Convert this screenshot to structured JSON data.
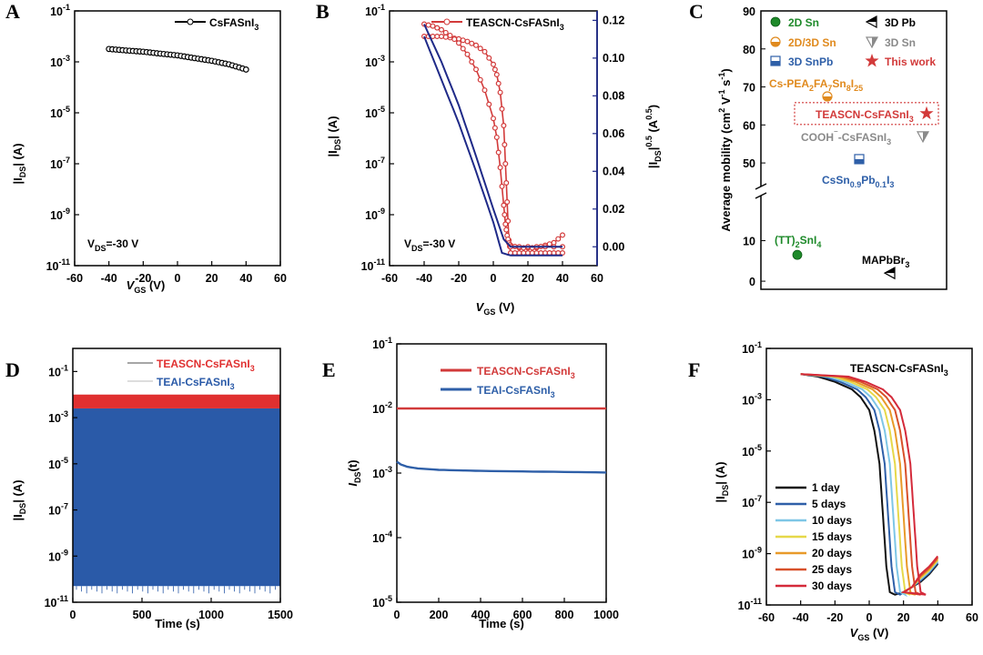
{
  "panel_labels": [
    "A",
    "B",
    "C",
    "D",
    "E",
    "F"
  ],
  "chart_data": [
    {
      "panel": "A",
      "type": "line",
      "title": "",
      "xlabel": "V_GS (V)",
      "ylabel": "|I_DS| (A)",
      "xlim": [
        -60,
        60
      ],
      "ylim_log10": [
        -11,
        -1
      ],
      "yscale": "log",
      "xticks": [
        -60,
        -40,
        -20,
        0,
        20,
        40,
        60
      ],
      "yticks": [
        -11,
        -9,
        -7,
        -5,
        -3,
        -1
      ],
      "legend": "top-right",
      "annotation": "V_DS=-30 V",
      "series": [
        {
          "name": "CsFASnI3",
          "color": "#000000",
          "marker": "circle-open",
          "x": [
            -40,
            -30,
            -20,
            -10,
            0,
            10,
            20,
            30,
            40
          ],
          "y": [
            0.0032,
            0.0028,
            0.0025,
            0.0021,
            0.0018,
            0.0014,
            0.0011,
            0.0008,
            0.0005
          ]
        }
      ]
    },
    {
      "panel": "B",
      "type": "line",
      "title": "",
      "xlabel": "V_GS (V)",
      "ylabel": "|I_DS| (A)",
      "y2label": "|I_DS|^0.5 (A^0.5)",
      "xlim": [
        -60,
        60
      ],
      "ylim_log10": [
        -11,
        -1
      ],
      "y2lim": [
        -0.01,
        0.125
      ],
      "yscale": "log",
      "xticks": [
        -60,
        -40,
        -20,
        0,
        20,
        40,
        60
      ],
      "yticks": [
        -11,
        -9,
        -7,
        -5,
        -3,
        -1
      ],
      "y2ticks": [
        0.0,
        0.02,
        0.04,
        0.06,
        0.08,
        0.1,
        0.12
      ],
      "legend": "top-right",
      "annotation": "V_DS=-30 V",
      "series": [
        {
          "name": "TEASCN-CsFASnI3",
          "color": "#d23a3a",
          "marker": "circle-open",
          "axis": "left",
          "x": [
            -40,
            -35,
            -30,
            -25,
            -20,
            -15,
            -10,
            -5,
            0,
            2,
            4,
            6,
            7,
            8,
            9,
            10,
            15,
            20,
            25,
            30,
            35,
            40
          ],
          "y_log10": [
            -2.0,
            -2.0,
            -2.0,
            -2.05,
            -2.1,
            -2.2,
            -2.35,
            -2.6,
            -3.1,
            -3.5,
            -4.2,
            -5.5,
            -7.0,
            -8.5,
            -10.0,
            -10.5,
            -10.5,
            -10.5,
            -10.5,
            -10.5,
            -10.5,
            -10.5
          ]
        },
        {
          "name": "",
          "color": "#d23a3a",
          "marker": "circle-open",
          "axis": "left",
          "x": [
            10,
            15,
            20,
            25,
            30,
            35,
            40
          ],
          "y_log10": [
            -10.2,
            -10.3,
            -10.3,
            -10.3,
            -10.2,
            -10.1,
            -9.8
          ]
        },
        {
          "name": "",
          "color": "#d23a3a",
          "marker": "circle-open",
          "axis": "right",
          "x": [
            -40,
            -35,
            -30,
            -25,
            -20,
            -15,
            -10,
            -5,
            0,
            2,
            4,
            6,
            7,
            8,
            9,
            10,
            20,
            30,
            40
          ],
          "y": [
            0.118,
            0.117,
            0.115,
            0.112,
            0.108,
            0.102,
            0.094,
            0.083,
            0.068,
            0.058,
            0.042,
            0.022,
            0.012,
            0.006,
            0.002,
            0.0,
            0.0,
            0.0,
            0.0
          ]
        },
        {
          "name": "",
          "color": "#1f2a88",
          "marker": "none",
          "axis": "left",
          "x": [
            -40,
            -30,
            -20,
            -10,
            0,
            5,
            10,
            20,
            30,
            40
          ],
          "y_log10": [
            -2.0,
            -3.7,
            -5.4,
            -7.3,
            -9.3,
            -10.5,
            -10.6,
            -10.6,
            -10.6,
            -10.6
          ]
        },
        {
          "name": "",
          "color": "#1f2a88",
          "marker": "none",
          "axis": "right",
          "x": [
            -40,
            -30,
            -20,
            -10,
            -5,
            0,
            3,
            6,
            10,
            20,
            30,
            40
          ],
          "y": [
            0.118,
            0.098,
            0.075,
            0.048,
            0.034,
            0.02,
            0.012,
            0.004,
            0.0,
            0.0,
            0.0,
            0.0
          ]
        }
      ]
    },
    {
      "panel": "C",
      "type": "scatter",
      "title": "",
      "xlabel": "",
      "ylabel": "Average mobility (cm² V⁻¹ s⁻¹)",
      "yticks_upper": [
        50,
        60,
        70,
        80,
        90
      ],
      "yticks_lower": [
        0,
        10
      ],
      "ylim_upper": [
        45,
        90
      ],
      "ylim_lower": [
        -2,
        20
      ],
      "axis_break": true,
      "legend": "top-left",
      "legend_entries": [
        {
          "label": "2D Sn",
          "color": "#1e8a2a",
          "marker": "sphere"
        },
        {
          "label": "3D Pb",
          "color": "#000000",
          "marker": "triangle-left"
        },
        {
          "label": "2D/3D Sn",
          "color": "#e08a1e",
          "marker": "half-circle"
        },
        {
          "label": "3D Sn",
          "color": "#8a8a8a",
          "marker": "triangle-down"
        },
        {
          "label": "3D SnPb",
          "color": "#2e5fa8",
          "marker": "half-square"
        },
        {
          "label": "This work",
          "color": "#d23a3a",
          "marker": "star"
        }
      ],
      "points": [
        {
          "label": "Cs-PEA2FA7Sn8I25",
          "y": 67.5,
          "color": "#e08a1e",
          "marker": "half-circle"
        },
        {
          "label": "TEASCN-CsFASnI3",
          "y": 63.0,
          "color": "#d23a3a",
          "marker": "star"
        },
        {
          "label": "COOH⁻-CsFASnI3",
          "y": 57.0,
          "color": "#8a8a8a",
          "marker": "triangle-down"
        },
        {
          "label": "CsSn0.9Pb0.1I3",
          "y": 51.0,
          "color": "#2e5fa8",
          "marker": "half-square"
        },
        {
          "label": "(TT)2SnI4",
          "y": 6.5,
          "color": "#1e8a2a",
          "marker": "sphere"
        },
        {
          "label": "MAPbBr3",
          "y": 2.0,
          "color": "#000000",
          "marker": "triangle-left"
        }
      ]
    },
    {
      "panel": "D",
      "type": "area",
      "title": "",
      "xlabel": "Time (s)",
      "ylabel": "|I_DS| (A)",
      "xlim": [
        0,
        1500
      ],
      "ylim_log10": [
        -11,
        0
      ],
      "yscale": "log",
      "xticks": [
        0,
        500,
        1000,
        1500
      ],
      "yticks": [
        -11,
        -9,
        -7,
        -5,
        -3,
        -1
      ],
      "legend": "top-right",
      "series": [
        {
          "name": "TEASCN-CsFASnI3",
          "color": "#e03030",
          "on_log10": -2.0,
          "off_log10": -2.6
        },
        {
          "name": "TEAI-CsFASnI3",
          "color": "#2a5aa8",
          "on_log10": -2.6,
          "off_log10": -10.3
        }
      ]
    },
    {
      "panel": "E",
      "type": "line",
      "title": "",
      "xlabel": "Time (s)",
      "ylabel": "I_DS(t)",
      "xlim": [
        0,
        1000
      ],
      "ylim_log10": [
        -5,
        -1
      ],
      "yscale": "log",
      "xticks": [
        0,
        200,
        400,
        600,
        800,
        1000
      ],
      "yticks": [
        -5,
        -4,
        -3,
        -2,
        -1
      ],
      "legend": "top-right",
      "series": [
        {
          "name": "TEASCN-CsFASnI3",
          "color": "#d23a3a",
          "x": [
            0,
            200,
            400,
            600,
            800,
            1000
          ],
          "y": [
            0.01,
            0.01,
            0.01,
            0.01,
            0.01,
            0.01
          ]
        },
        {
          "name": "TEAI-CsFASnI3",
          "color": "#2e5fa8",
          "x": [
            0,
            20,
            50,
            100,
            200,
            300,
            400,
            600,
            800,
            1000
          ],
          "y": [
            0.0015,
            0.00135,
            0.00125,
            0.00118,
            0.00112,
            0.0011,
            0.00108,
            0.00106,
            0.00104,
            0.00102
          ]
        }
      ]
    },
    {
      "panel": "F",
      "type": "line",
      "title": "TEASCN-CsFASnI3",
      "xlabel": "V_GS (V)",
      "ylabel": "|I_DS| (A)",
      "xlim": [
        -60,
        60
      ],
      "ylim_log10": [
        -11,
        -1
      ],
      "yscale": "log",
      "xticks": [
        -60,
        -40,
        -20,
        0,
        20,
        40,
        60
      ],
      "yticks": [
        -11,
        -9,
        -7,
        -5,
        -3,
        -1
      ],
      "legend": "bottom-left",
      "series": [
        {
          "name": "1 day",
          "color": "#111111",
          "shift": 0
        },
        {
          "name": "5 days",
          "color": "#2e5fa8",
          "shift": 3
        },
        {
          "name": "10 days",
          "color": "#7ec6e6",
          "shift": 6
        },
        {
          "name": "15 days",
          "color": "#e6d84a",
          "shift": 9
        },
        {
          "name": "20 days",
          "color": "#e89a2a",
          "shift": 12
        },
        {
          "name": "25 days",
          "color": "#d8502a",
          "shift": 15
        },
        {
          "name": "30 days",
          "color": "#d42a3a",
          "shift": 18
        }
      ]
    }
  ]
}
